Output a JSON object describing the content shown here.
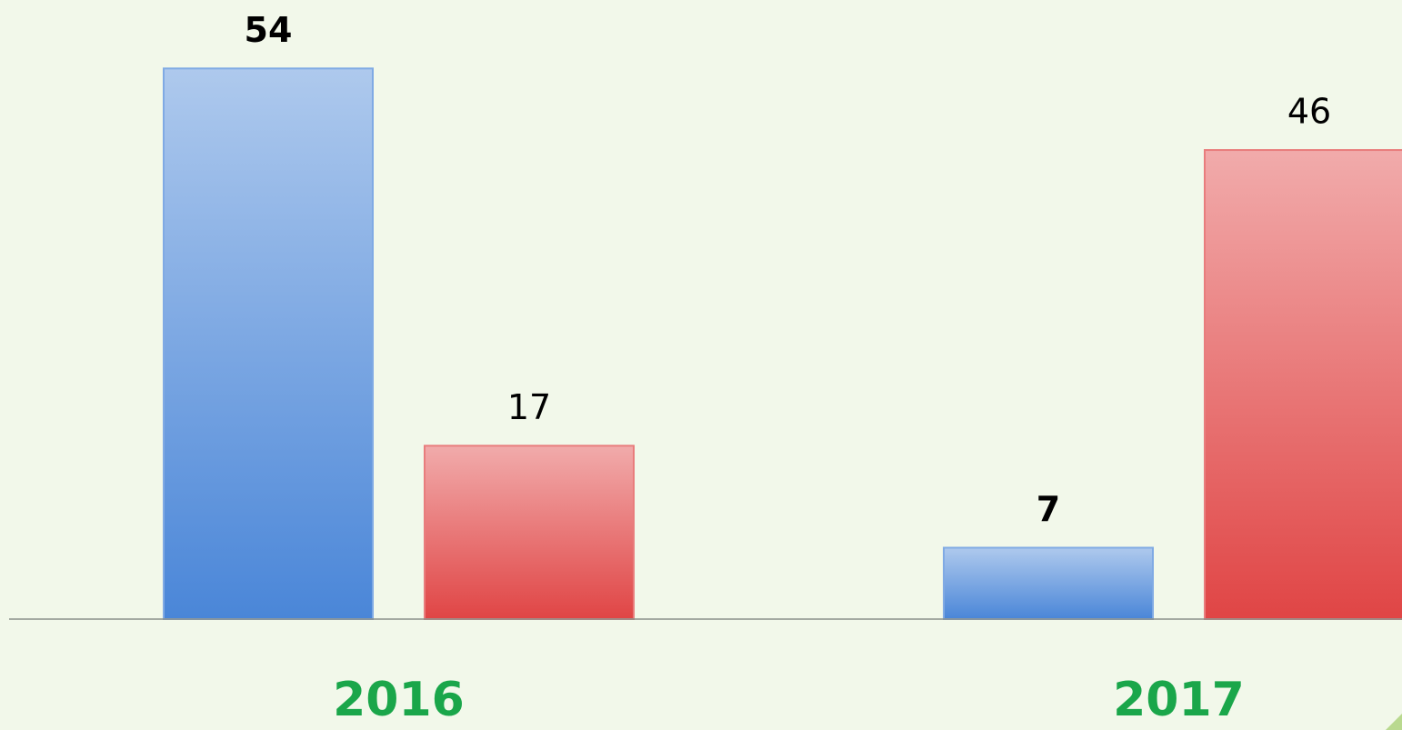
{
  "chart_data": {
    "type": "bar",
    "categories": [
      "2016",
      "2017"
    ],
    "series": [
      {
        "color": "#4a86d8",
        "values": [
          54,
          7
        ]
      },
      {
        "color": "#e04545",
        "values": [
          17,
          46
        ]
      }
    ],
    "ylim": [
      0,
      60
    ]
  }
}
